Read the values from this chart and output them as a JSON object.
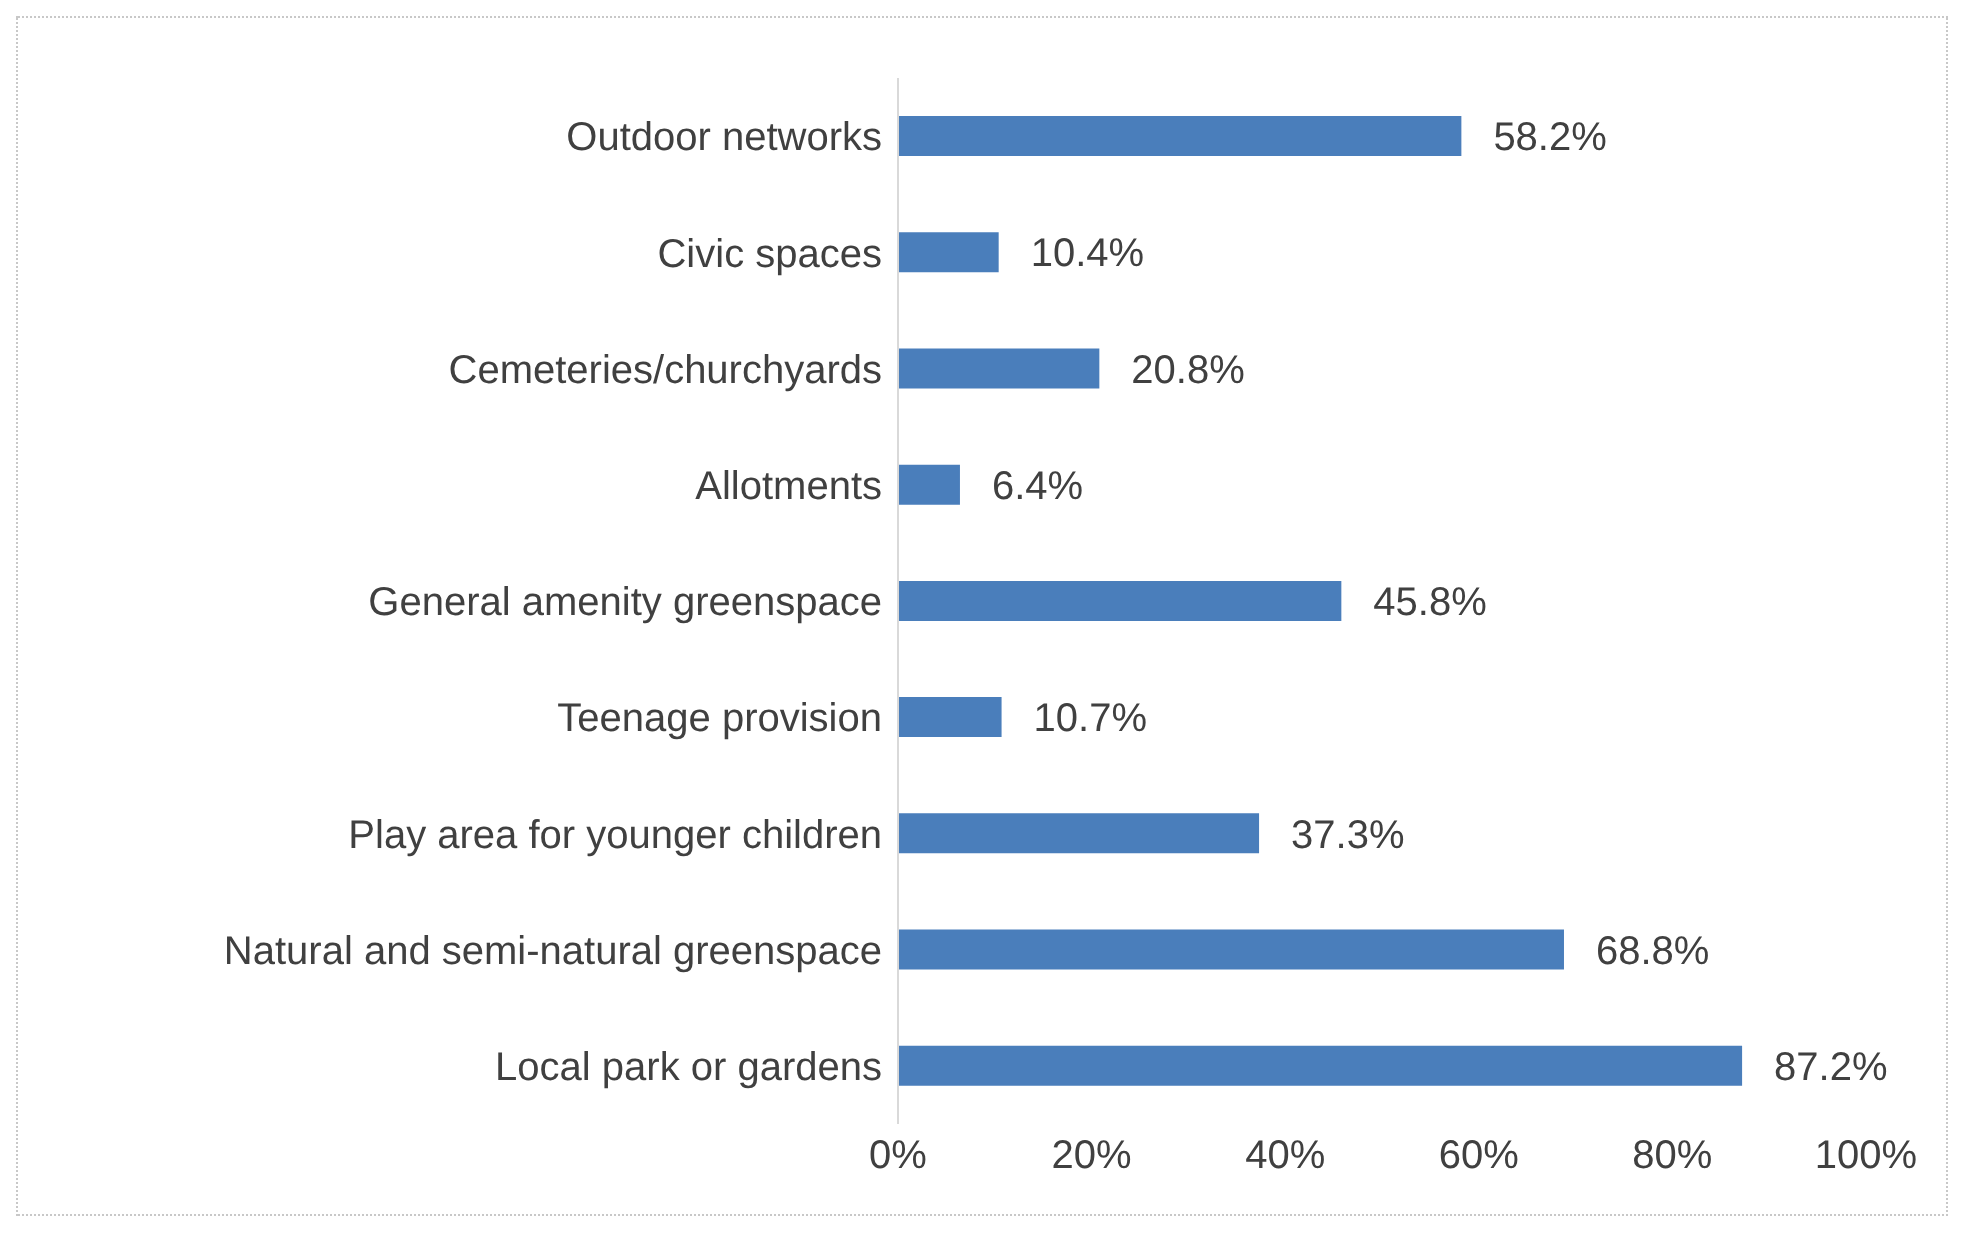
{
  "chart_data": {
    "type": "bar",
    "orientation": "horizontal",
    "categories": [
      "Outdoor networks",
      "Civic spaces",
      "Cemeteries/churchyards",
      "Allotments",
      "General amenity greenspace",
      "Teenage provision",
      "Play area for younger children",
      "Natural and semi-natural greenspace",
      "Local park or gardens"
    ],
    "values": [
      58.2,
      10.4,
      20.8,
      6.4,
      45.8,
      10.7,
      37.3,
      68.8,
      87.2
    ],
    "value_labels": [
      "58.2%",
      "10.4%",
      "20.8%",
      "6.4%",
      "45.8%",
      "10.7%",
      "37.3%",
      "68.8%",
      "87.2%"
    ],
    "color": "#4a7ebb",
    "xlim": [
      0,
      100
    ],
    "xticks": [
      {
        "value": 0,
        "label": "0%"
      },
      {
        "value": 20,
        "label": "20%"
      },
      {
        "value": 40,
        "label": "40%"
      },
      {
        "value": 60,
        "label": "60%"
      },
      {
        "value": 80,
        "label": "80%"
      },
      {
        "value": 100,
        "label": "100%"
      }
    ],
    "grid": false,
    "legend": false
  }
}
